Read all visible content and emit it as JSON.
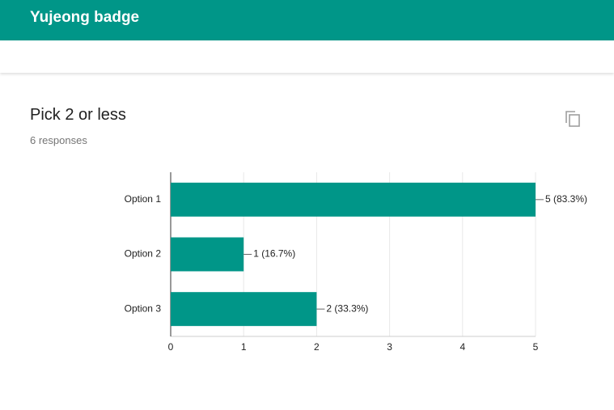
{
  "header": {
    "title": "Yujeong badge"
  },
  "chart_data": {
    "type": "bar",
    "orientation": "horizontal",
    "title": "Pick 2 or less",
    "subtitle": "6 responses",
    "categories": [
      "Option 1",
      "Option 2",
      "Option 3"
    ],
    "values": [
      5,
      1,
      2
    ],
    "value_labels": [
      "5 (83.3%)",
      "1 (16.7%)",
      "2 (33.3%)"
    ],
    "color": "#009688",
    "xlim": [
      0,
      5
    ],
    "xticks": [
      0,
      1,
      2,
      3,
      4,
      5
    ],
    "grid": true
  }
}
